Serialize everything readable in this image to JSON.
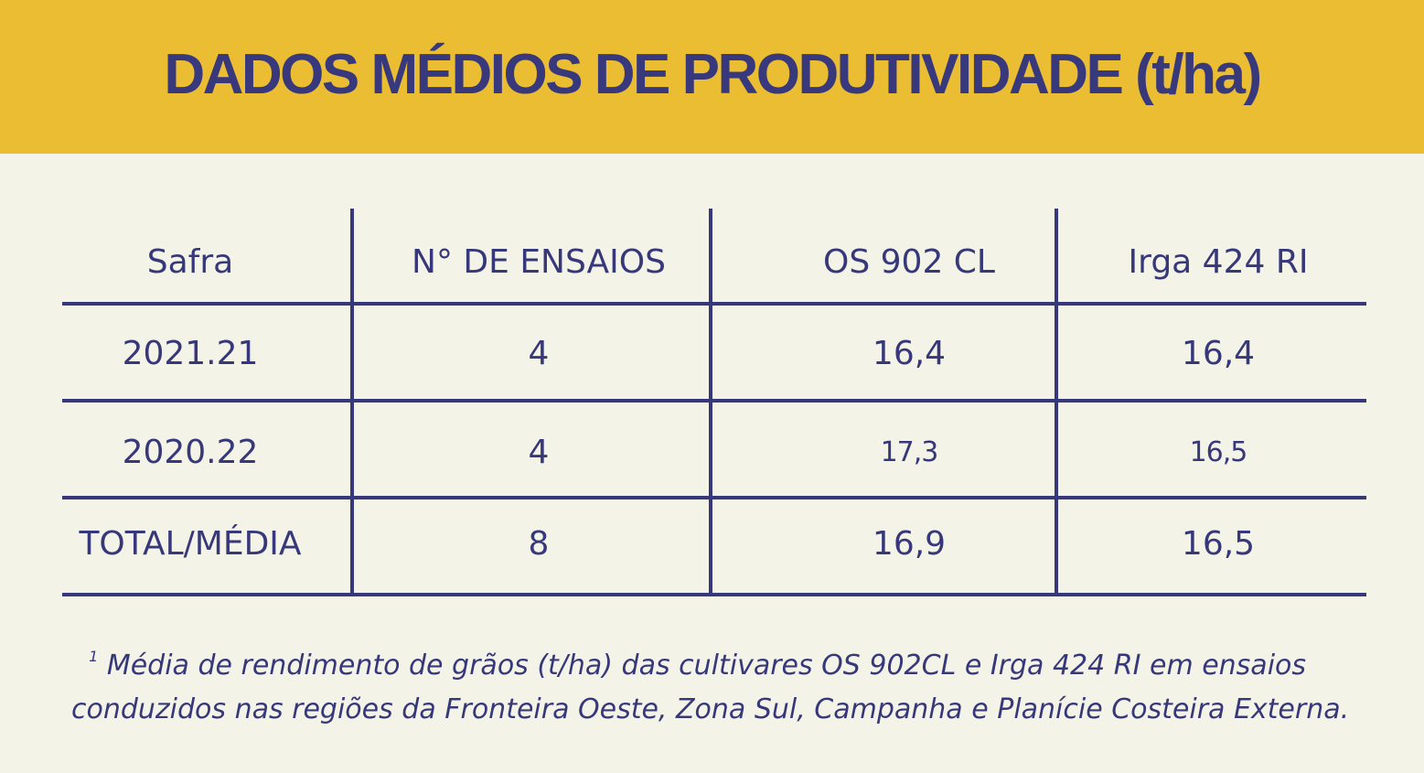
{
  "title": "DADOS MÉDIOS DE PRODUTIVIDADE (t/ha)",
  "table": {
    "headers": [
      "Safra",
      "N° DE ENSAIOS",
      "OS 902 CL",
      "Irga 424 RI"
    ],
    "rows": [
      [
        "2021.21",
        "4",
        "16,4",
        "16,4"
      ],
      [
        "2020.22",
        "4",
        "17,3",
        "16,5"
      ],
      [
        "TOTAL/MÉDIA",
        "8",
        "16,9",
        "16,5"
      ]
    ]
  },
  "footnote": {
    "marker": "1",
    "line1": "Média de rendimento de grãos (t/ha) das cultivares OS 902CL e  Irga 424 RI em ensaios",
    "line2": "conduzidos nas regiões da Fronteira Oeste, Zona Sul, Campanha e Planície Costeira Externa."
  },
  "colors": {
    "header_background": "#ebbd33",
    "page_background": "#f4f3e8",
    "text_and_lines": "#37387a"
  }
}
